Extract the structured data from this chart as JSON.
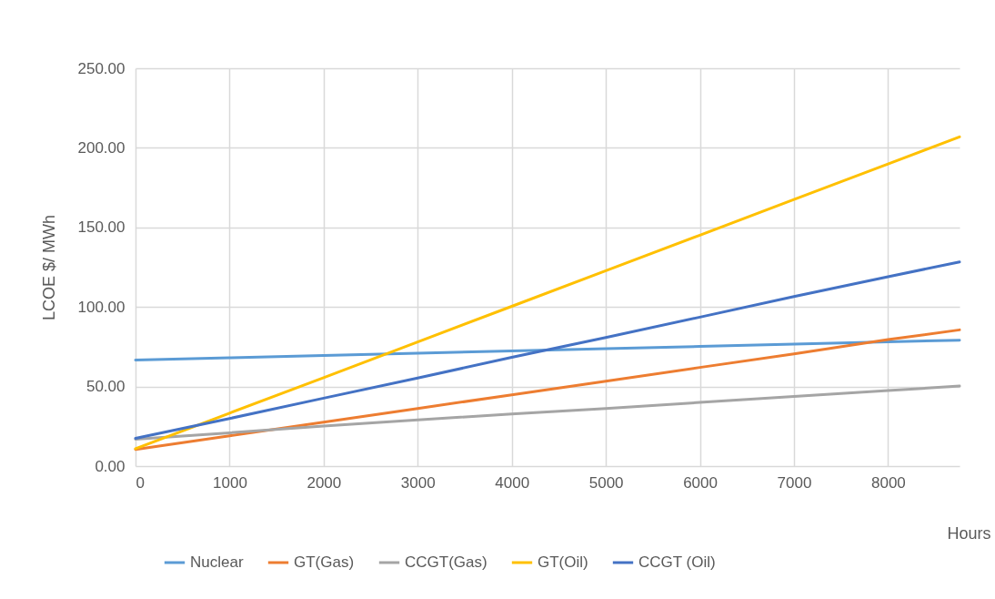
{
  "chart_data": {
    "type": "line",
    "xlabel": "Hours",
    "ylabel": "LCOE $/ MWh",
    "x": [
      0,
      1000,
      2000,
      3000,
      4000,
      5000,
      6000,
      7000,
      8000,
      8760
    ],
    "series": [
      {
        "name": "Nuclear",
        "color": "#5b9bd5",
        "values": [
          66.7,
          68.1,
          69.5,
          71.0,
          72.4,
          73.8,
          75.2,
          76.6,
          78.1,
          79.1
        ]
      },
      {
        "name": "GT(Gas)",
        "color": "#ed7d31",
        "values": [
          10.5,
          19.0,
          27.6,
          36.2,
          44.8,
          53.4,
          62.0,
          70.5,
          79.5,
          85.6
        ]
      },
      {
        "name": "CCGT(Gas)",
        "color": "#a5a5a5",
        "values": [
          16.9,
          20.9,
          25.2,
          29.0,
          32.8,
          36.2,
          40.0,
          43.8,
          47.5,
          50.3
        ]
      },
      {
        "name": "GT(Oil)",
        "color": "#ffc000",
        "values": [
          10.9,
          33.3,
          55.6,
          78.0,
          100.4,
          122.8,
          145.1,
          167.5,
          189.9,
          206.9
        ]
      },
      {
        "name": "CCGT (Oil)",
        "color": "#4472c4",
        "values": [
          17.5,
          29.9,
          42.7,
          55.3,
          68.4,
          80.8,
          93.6,
          106.6,
          119.0,
          128.3
        ]
      }
    ],
    "xlim": [
      0,
      8760
    ],
    "xticks": [
      0,
      1000,
      2000,
      3000,
      4000,
      5000,
      6000,
      7000,
      8000
    ],
    "ylim": [
      0,
      250
    ],
    "yticks": [
      {
        "value": 0,
        "label": "0.00"
      },
      {
        "value": 50,
        "label": "50.00"
      },
      {
        "value": 100,
        "label": "100.00"
      },
      {
        "value": 150,
        "label": "150.00"
      },
      {
        "value": 200,
        "label": "200.00"
      },
      {
        "value": 250,
        "label": "250.00"
      }
    ],
    "grid": true,
    "legend": "bottom",
    "marker": "none",
    "line_style": "solid"
  }
}
